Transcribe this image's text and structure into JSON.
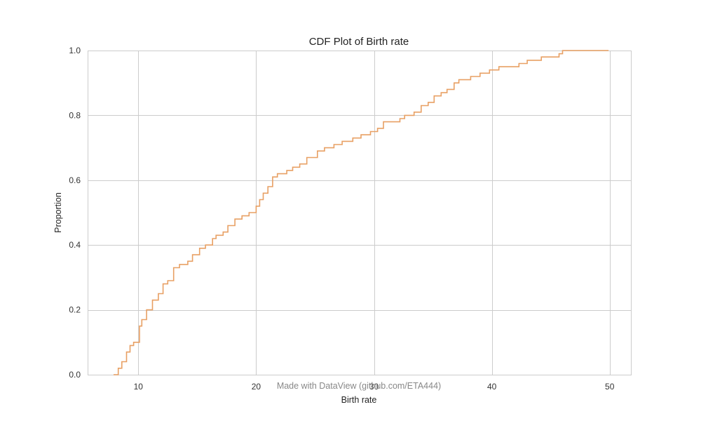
{
  "chart_data": {
    "type": "line",
    "title": "CDF Plot of Birth rate",
    "xlabel": "Birth rate",
    "ylabel": "Proportion",
    "xlim": [
      5.7,
      51.8
    ],
    "ylim": [
      0,
      1
    ],
    "x_ticks": [
      10,
      20,
      30,
      40,
      50
    ],
    "x_tick_labels": [
      "10",
      "20",
      "30",
      "40",
      "50"
    ],
    "y_ticks": [
      0,
      0.2,
      0.4,
      0.6,
      0.8,
      1.0
    ],
    "y_tick_labels": [
      "0.0",
      "0.2",
      "0.4",
      "0.6",
      "0.8",
      "1.0"
    ],
    "grid": true,
    "series": [
      {
        "color": "#e8a064",
        "x": [
          7.9,
          8.3,
          8.6,
          9.0,
          9.3,
          9.6,
          10.1,
          10.3,
          10.7,
          11.2,
          11.7,
          12.1,
          12.5,
          13.0,
          13.5,
          14.2,
          14.6,
          15.2,
          15.7,
          16.3,
          16.6,
          17.2,
          17.6,
          18.2,
          18.8,
          19.4,
          20.0,
          20.3,
          20.6,
          21.0,
          21.4,
          21.8,
          22.6,
          23.1,
          23.7,
          24.3,
          25.2,
          25.8,
          26.6,
          27.3,
          28.2,
          28.9,
          29.7,
          30.3,
          30.8,
          31.3,
          32.2,
          32.6,
          33.4,
          34.0,
          34.6,
          35.1,
          35.7,
          36.2,
          36.8,
          37.2,
          38.2,
          39.0,
          39.8,
          40.6,
          41.4,
          42.3,
          43.0,
          43.6,
          44.2,
          45.7,
          46.0,
          49.9
        ],
        "y": [
          0.0,
          0.02,
          0.04,
          0.07,
          0.09,
          0.1,
          0.15,
          0.17,
          0.2,
          0.23,
          0.25,
          0.28,
          0.29,
          0.33,
          0.34,
          0.35,
          0.37,
          0.39,
          0.4,
          0.42,
          0.43,
          0.44,
          0.46,
          0.48,
          0.49,
          0.5,
          0.52,
          0.54,
          0.56,
          0.58,
          0.61,
          0.62,
          0.63,
          0.64,
          0.65,
          0.67,
          0.69,
          0.7,
          0.71,
          0.72,
          0.73,
          0.74,
          0.75,
          0.76,
          0.78,
          0.78,
          0.79,
          0.8,
          0.81,
          0.83,
          0.84,
          0.86,
          0.87,
          0.88,
          0.9,
          0.91,
          0.92,
          0.93,
          0.94,
          0.95,
          0.95,
          0.96,
          0.97,
          0.97,
          0.98,
          0.99,
          1.0,
          1.0
        ]
      }
    ]
  },
  "watermark": "Made with DataView (github.com/ETA444)"
}
